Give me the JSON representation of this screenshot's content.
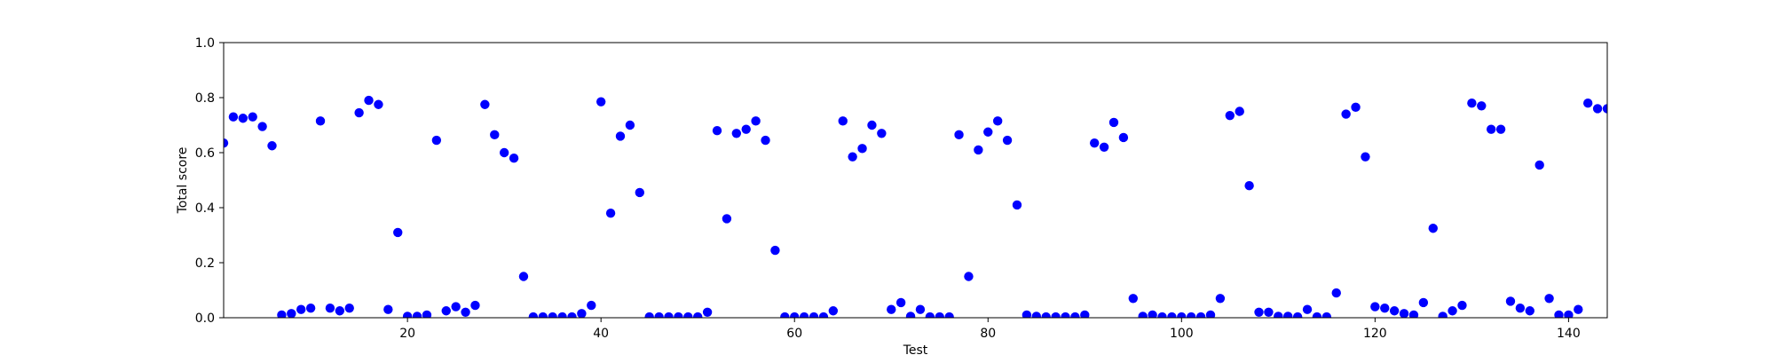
{
  "chart_data": {
    "type": "scatter",
    "title": "",
    "xlabel": "Test",
    "ylabel": "Total score",
    "xlim": [
      1,
      144
    ],
    "ylim": [
      0.0,
      1.0
    ],
    "x_ticks": [
      20,
      40,
      60,
      80,
      100,
      120,
      140
    ],
    "x_tick_labels": [
      "20",
      "40",
      "60",
      "80",
      "100",
      "120",
      "140"
    ],
    "y_ticks": [
      0.0,
      0.2,
      0.4,
      0.6,
      0.8,
      1.0
    ],
    "y_tick_labels": [
      "0.0",
      "0.2",
      "0.4",
      "0.6",
      "0.8",
      "1.0"
    ],
    "grid": false,
    "legend": "none",
    "marker_color": "#0000ff",
    "series": [
      {
        "x": [
          1,
          2,
          3,
          4,
          5,
          6,
          7,
          8,
          9,
          10,
          11,
          12,
          13,
          14,
          15,
          16,
          17,
          18,
          19,
          20,
          21,
          22,
          23,
          24,
          25,
          26,
          27,
          28,
          29,
          30,
          31,
          32,
          33,
          34,
          35,
          36,
          37,
          38,
          39,
          40,
          41,
          42,
          43,
          44,
          45,
          46,
          47,
          48,
          49,
          50,
          51,
          52,
          53,
          54,
          55,
          56,
          57,
          58,
          59,
          60,
          61,
          62,
          63,
          64,
          65,
          66,
          67,
          68,
          69,
          70,
          71,
          72,
          73,
          74,
          75,
          76,
          77,
          78,
          79,
          80,
          81,
          82,
          83,
          84,
          85,
          86,
          87,
          88,
          89,
          90,
          91,
          92,
          93,
          94,
          95,
          96,
          97,
          98,
          99,
          100,
          101,
          102,
          103,
          104,
          105,
          106,
          107,
          108,
          109,
          110,
          111,
          112,
          113,
          114,
          115,
          116,
          117,
          118,
          119,
          120,
          121,
          122,
          123,
          124,
          125,
          126,
          127,
          128,
          129,
          130,
          131,
          132,
          133,
          134,
          135,
          136,
          137,
          138,
          139,
          140,
          141,
          142,
          143,
          144
        ],
        "y": [
          0.635,
          0.73,
          0.725,
          0.73,
          0.695,
          0.625,
          0.01,
          0.015,
          0.03,
          0.035,
          0.715,
          0.035,
          0.025,
          0.035,
          0.745,
          0.79,
          0.775,
          0.03,
          0.31,
          0.005,
          0.005,
          0.01,
          0.645,
          0.025,
          0.04,
          0.02,
          0.045,
          0.775,
          0.665,
          0.6,
          0.58,
          0.15,
          0.003,
          0.003,
          0.003,
          0.003,
          0.003,
          0.015,
          0.045,
          0.785,
          0.38,
          0.66,
          0.7,
          0.455,
          0.003,
          0.003,
          0.003,
          0.003,
          0.003,
          0.003,
          0.02,
          0.68,
          0.36,
          0.67,
          0.685,
          0.715,
          0.645,
          0.245,
          0.003,
          0.003,
          0.003,
          0.003,
          0.003,
          0.025,
          0.715,
          0.585,
          0.615,
          0.7,
          0.67,
          0.03,
          0.055,
          0.005,
          0.03,
          0.003,
          0.003,
          0.003,
          0.665,
          0.15,
          0.61,
          0.675,
          0.715,
          0.645,
          0.41,
          0.01,
          0.005,
          0.003,
          0.003,
          0.003,
          0.003,
          0.01,
          0.635,
          0.62,
          0.71,
          0.655,
          0.07,
          0.005,
          0.01,
          0.003,
          0.003,
          0.003,
          0.003,
          0.003,
          0.01,
          0.07,
          0.735,
          0.75,
          0.48,
          0.02,
          0.02,
          0.005,
          0.005,
          0.003,
          0.03,
          0.003,
          0.003,
          0.09,
          0.74,
          0.765,
          0.585,
          0.04,
          0.035,
          0.025,
          0.015,
          0.01,
          0.055,
          0.325,
          0.005,
          0.025,
          0.045,
          0.78,
          0.77,
          0.685,
          0.685,
          0.06,
          0.035,
          0.025,
          0.555,
          0.07,
          0.01,
          0.01,
          0.03,
          0.78,
          0.76,
          0.76
        ]
      }
    ]
  }
}
